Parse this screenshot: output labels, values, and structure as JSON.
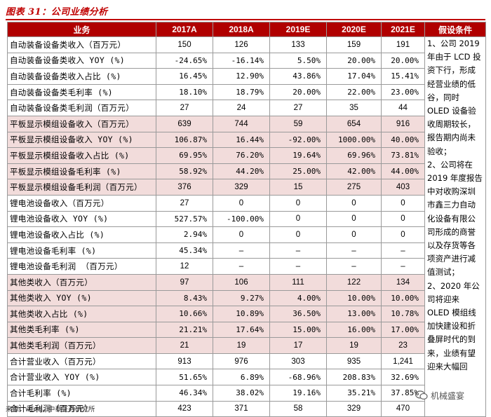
{
  "title": "图表 31：公司业绩分析",
  "table": {
    "headers": [
      "业务",
      "2017A",
      "2018A",
      "2019E",
      "2020E",
      "2021E",
      "假设条件"
    ],
    "rows": [
      {
        "label": "自动装备设备类收入（百万元）",
        "values": [
          "150",
          "126",
          "133",
          "159",
          "191"
        ],
        "highlight": false
      },
      {
        "label": "自动装备设备类收入 YOY (%)",
        "values": [
          "-24.65%",
          "-16.14%",
          "5.50%",
          "20.00%",
          "20.00%"
        ],
        "highlight": false
      },
      {
        "label": "自动装备设备类收入占比 (%)",
        "values": [
          "16.45%",
          "12.90%",
          "43.86%",
          "17.04%",
          "15.41%"
        ],
        "highlight": false
      },
      {
        "label": "自动装备设备类毛利率 (%)",
        "values": [
          "18.10%",
          "18.79%",
          "20.00%",
          "22.00%",
          "23.00%"
        ],
        "highlight": false
      },
      {
        "label": "自动装备设备类毛利润（百万元）",
        "values": [
          "27",
          "24",
          "27",
          "35",
          "44"
        ],
        "highlight": false
      },
      {
        "label": "平板显示模组设备收入（百万元）",
        "values": [
          "639",
          "744",
          "59",
          "654",
          "916"
        ],
        "highlight": true
      },
      {
        "label": "平板显示模组设备收入 YOY (%)",
        "values": [
          "106.87%",
          "16.44%",
          "-92.00%",
          "1000.00%",
          "40.00%"
        ],
        "highlight": true
      },
      {
        "label": "平板显示模组设备收入占比 (%)",
        "values": [
          "69.95%",
          "76.20%",
          "19.64%",
          "69.96%",
          "73.81%"
        ],
        "highlight": true
      },
      {
        "label": "平板显示模组设备毛利率 (%)",
        "values": [
          "58.92%",
          "44.20%",
          "25.00%",
          "42.00%",
          "44.00%"
        ],
        "highlight": true
      },
      {
        "label": "平板显示模组设备毛利润（百万元）",
        "values": [
          "376",
          "329",
          "15",
          "275",
          "403"
        ],
        "highlight": true
      },
      {
        "label": "锂电池设备收入（百万元）",
        "values": [
          "27",
          "0",
          "0",
          "0",
          "0"
        ],
        "highlight": false
      },
      {
        "label": "锂电池设备收入 YOY (%)",
        "values": [
          "527.57%",
          "-100.00%",
          "0",
          "0",
          "0"
        ],
        "highlight": false
      },
      {
        "label": "锂电池设备收入占比 (%)",
        "values": [
          "2.94%",
          "0",
          "0",
          "0",
          "0"
        ],
        "highlight": false
      },
      {
        "label": "锂电池设备毛利率 (%)",
        "values": [
          "45.34%",
          "–",
          "–",
          "–",
          "–"
        ],
        "highlight": false
      },
      {
        "label": "锂电池设备毛利润 （百万元）",
        "values": [
          "12",
          "–",
          "–",
          "–",
          "–"
        ],
        "highlight": false
      },
      {
        "label": "其他类收入（百万元）",
        "values": [
          "97",
          "106",
          "111",
          "122",
          "134"
        ],
        "highlight": true
      },
      {
        "label": "其他类收入 YOY (%)",
        "values": [
          "8.43%",
          "9.27%",
          "4.00%",
          "10.00%",
          "10.00%"
        ],
        "highlight": true
      },
      {
        "label": "其他类收入占比 (%)",
        "values": [
          "10.66%",
          "10.89%",
          "36.50%",
          "13.00%",
          "10.78%"
        ],
        "highlight": true
      },
      {
        "label": "其他类毛利率 (%)",
        "values": [
          "21.21%",
          "17.64%",
          "15.00%",
          "16.00%",
          "17.00%"
        ],
        "highlight": true
      },
      {
        "label": "其他类毛利润（百万元）",
        "values": [
          "21",
          "19",
          "17",
          "19",
          "23"
        ],
        "highlight": true
      },
      {
        "label": "合计营业收入（百万元）",
        "values": [
          "913",
          "976",
          "303",
          "935",
          "1,241"
        ],
        "highlight": false
      },
      {
        "label": "合计营业收入 YOY (%)",
        "values": [
          "51.65%",
          "6.89%",
          "-68.96%",
          "208.83%",
          "32.69%"
        ],
        "highlight": false
      },
      {
        "label": "合计毛利率 (%)",
        "values": [
          "46.34%",
          "38.02%",
          "19.16%",
          "35.21%",
          "37.85%"
        ],
        "highlight": false
      },
      {
        "label": "合计毛利润（百万元）",
        "values": [
          "423",
          "371",
          "58",
          "329",
          "470"
        ],
        "highlight": false
      }
    ],
    "assumptions": "1、公司 2019 年由于 LCD 投资下行，形成经营业绩的低谷，同时 OLED 设备验收周期较长，报告期内尚未验收；\n2、公司将在 2019 年度报告中对收购深圳市鑫三力自动化设备有限公司形成的商誉以及存货等各项资产进行减值测试；\n2、2020 年公司将迎来 OLED 模组线加快建设和折叠屏时代的到来，业绩有望迎来大幅回"
  },
  "source": "来源：wind，中泰证券研究所",
  "watermark": "机械盛宴"
}
